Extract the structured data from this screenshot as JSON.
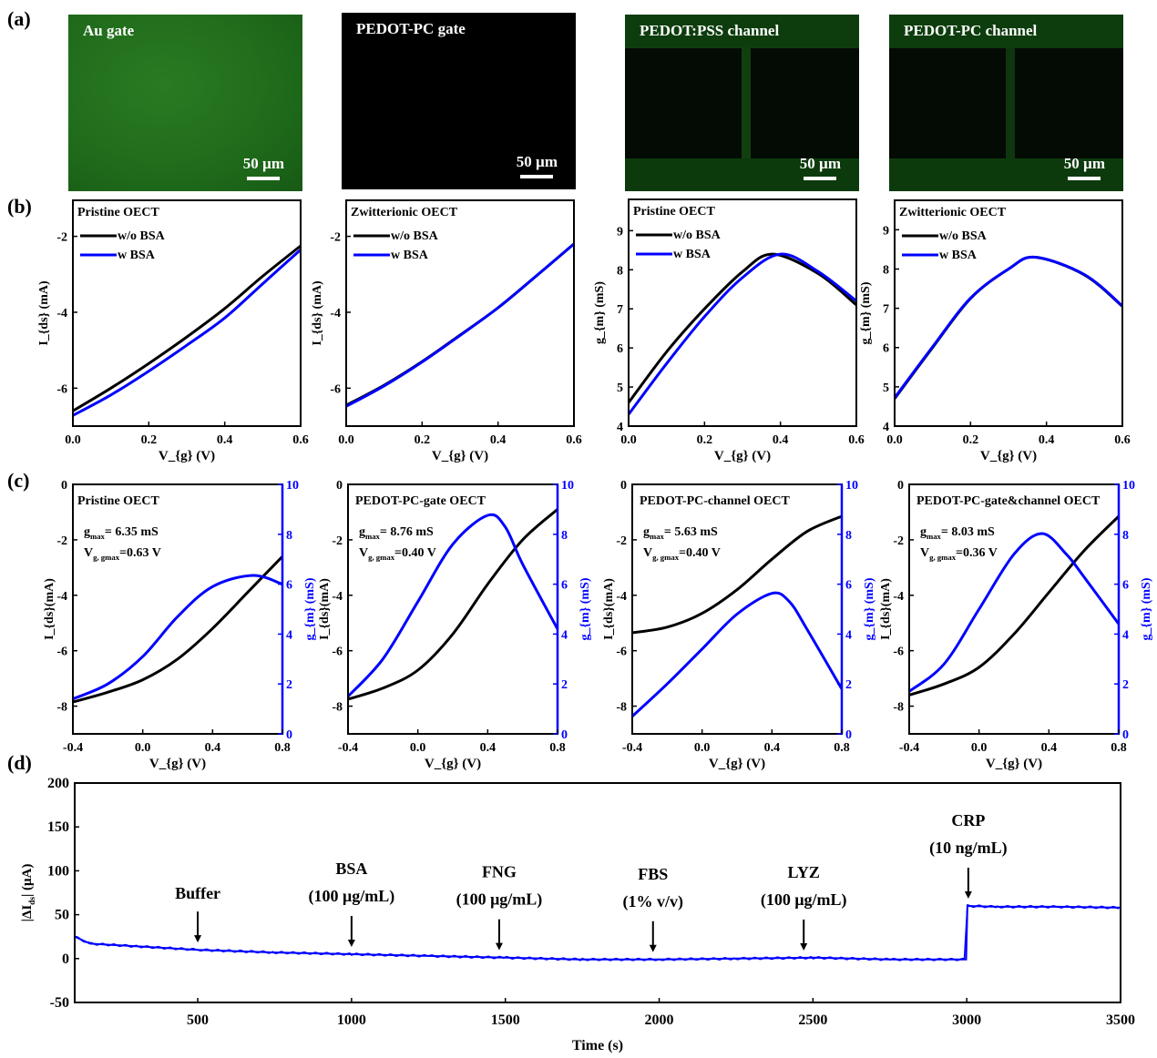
{
  "panel_labels": [
    "(a)",
    "(b)",
    "(c)",
    "(d)"
  ],
  "micrographs": [
    {
      "label": "Au gate",
      "scale": "50 µm",
      "color": "#1f6e1c"
    },
    {
      "label": "PEDOT-PC gate",
      "scale": "50 µm",
      "color": "#000000"
    },
    {
      "label": "PEDOT:PSS channel",
      "scale": "50 µm",
      "color": "#0d3d0d"
    },
    {
      "label": "PEDOT-PC channel",
      "scale": "50 µm",
      "color": "#0a300a"
    }
  ],
  "colors": {
    "black": "#000000",
    "blue": "#0000ff"
  },
  "chart_data": [
    {
      "type": "line",
      "title": "Pristine OECT",
      "xlabel": "V_{g} (V)",
      "ylabel": "I_{ds} (mA)",
      "xlim": [
        0,
        0.6
      ],
      "ylim": [
        -7.0,
        -1.05
      ],
      "xticks": [
        0,
        0.2,
        0.4,
        0.6
      ],
      "xticklabels": [
        "0.0",
        "0.2",
        "0.4",
        "0.6"
      ],
      "yticks": [
        -2,
        -4,
        -6
      ],
      "yticklabels": [
        "-2",
        "-4",
        "-6"
      ],
      "legend": "top-left",
      "series": [
        {
          "name": "w/o BSA",
          "color": "#000000",
          "x": [
            0,
            0.1,
            0.2,
            0.3,
            0.4,
            0.5,
            0.6
          ],
          "y": [
            -6.6,
            -6.0,
            -5.35,
            -4.65,
            -3.9,
            -3.05,
            -2.25
          ]
        },
        {
          "name": "w   BSA",
          "color": "#0000ff",
          "x": [
            0,
            0.1,
            0.2,
            0.3,
            0.4,
            0.5,
            0.6
          ],
          "y": [
            -6.72,
            -6.18,
            -5.55,
            -4.87,
            -4.15,
            -3.25,
            -2.35
          ]
        }
      ]
    },
    {
      "type": "line",
      "title": "Zwitterionic OECT",
      "xlabel": "V_{g} (V)",
      "ylabel": "I_{ds} (mA)",
      "xlim": [
        0,
        0.6
      ],
      "ylim": [
        -7.0,
        -1.05
      ],
      "xticks": [
        0,
        0.2,
        0.4,
        0.6
      ],
      "xticklabels": [
        "0.0",
        "0.2",
        "0.4",
        "0.6"
      ],
      "yticks": [
        -2,
        -4,
        -6
      ],
      "yticklabels": [
        "-2",
        "-4",
        "-6"
      ],
      "legend": "top-left",
      "series": [
        {
          "name": "w/o BSA",
          "color": "#000000",
          "x": [
            0,
            0.1,
            0.2,
            0.3,
            0.4,
            0.5,
            0.6
          ],
          "y": [
            -6.45,
            -5.92,
            -5.3,
            -4.6,
            -3.88,
            -3.05,
            -2.2
          ]
        },
        {
          "name": "w   BSA",
          "color": "#0000ff",
          "x": [
            0,
            0.1,
            0.2,
            0.3,
            0.4,
            0.5,
            0.6
          ],
          "y": [
            -6.48,
            -5.94,
            -5.31,
            -4.61,
            -3.88,
            -3.05,
            -2.2
          ]
        }
      ]
    },
    {
      "type": "line",
      "title": "Pristine OECT",
      "xlabel": "V_{g} (V)",
      "ylabel": "g_{m} (mS)",
      "xlim": [
        0,
        0.6
      ],
      "ylim": [
        4,
        9.8
      ],
      "xticks": [
        0,
        0.2,
        0.4,
        0.6
      ],
      "xticklabels": [
        "0.0",
        "0.2",
        "0.4",
        "0.6"
      ],
      "yticks": [
        4,
        5,
        6,
        7,
        8,
        9
      ],
      "yticklabels": [
        "4",
        "5",
        "6",
        "7",
        "8",
        "9"
      ],
      "legend": "top-left",
      "series": [
        {
          "name": "w/o BSA",
          "color": "#000000",
          "x": [
            0,
            0.1,
            0.2,
            0.3,
            0.38,
            0.5,
            0.6
          ],
          "y": [
            4.6,
            5.9,
            7.0,
            7.95,
            8.4,
            7.9,
            7.1
          ]
        },
        {
          "name": "w BSA",
          "color": "#0000ff",
          "x": [
            0,
            0.1,
            0.2,
            0.3,
            0.4,
            0.5,
            0.6
          ],
          "y": [
            4.3,
            5.6,
            6.8,
            7.8,
            8.4,
            7.95,
            7.2
          ]
        }
      ]
    },
    {
      "type": "line",
      "title": "Zwitterionic OECT",
      "xlabel": "V_{g} (V)",
      "ylabel": "g_{m} (mS)",
      "xlim": [
        0,
        0.6
      ],
      "ylim": [
        4,
        9.75
      ],
      "xticks": [
        0,
        0.2,
        0.4,
        0.6
      ],
      "xticklabels": [
        "0.0",
        "0.2",
        "0.4",
        "0.6"
      ],
      "yticks": [
        4,
        5,
        6,
        7,
        8,
        9
      ],
      "yticklabels": [
        "4",
        "5",
        "6",
        "7",
        "8",
        "9"
      ],
      "legend": "top-left",
      "series": [
        {
          "name": "w/o BSA",
          "color": "#000000",
          "x": [
            0,
            0.1,
            0.2,
            0.3,
            0.37,
            0.5,
            0.6
          ],
          "y": [
            4.7,
            6.0,
            7.25,
            8.0,
            8.3,
            7.85,
            7.05
          ]
        },
        {
          "name": "w BSA",
          "color": "#0000ff",
          "x": [
            0,
            0.1,
            0.2,
            0.3,
            0.37,
            0.5,
            0.6
          ],
          "y": [
            4.72,
            6.02,
            7.26,
            8.0,
            8.3,
            7.86,
            7.06
          ]
        }
      ]
    },
    {
      "type": "line",
      "title": "Pristine OECT",
      "xlabel": "V_{g} (V)",
      "ylabel": "I_{ds}(mA)",
      "y2label": "g_{m} (mS)",
      "xlim": [
        -0.4,
        0.8
      ],
      "ylim": [
        -9,
        0
      ],
      "y2lim": [
        0,
        10
      ],
      "xticks": [
        -0.4,
        0,
        0.4,
        0.8
      ],
      "xticklabels": [
        "-0.4",
        "0.0",
        "0.4",
        "0.8"
      ],
      "yticks": [
        0,
        -2,
        -4,
        -6,
        -8
      ],
      "yticklabels": [
        "0",
        "-2",
        "-4",
        "-6",
        "-8"
      ],
      "y2ticks": [
        0,
        2,
        4,
        6,
        8,
        10
      ],
      "y2ticklabels": [
        "0",
        "2",
        "4",
        "6",
        "8",
        "10"
      ],
      "annotations": [
        "g_{max}= 6.35 mS",
        "V_{g, gmax}=0.63 V"
      ],
      "series": [
        {
          "color": "#000000",
          "axis": "left",
          "x": [
            -0.4,
            -0.2,
            0,
            0.2,
            0.4,
            0.6,
            0.8
          ],
          "y": [
            -7.85,
            -7.5,
            -7.05,
            -6.3,
            -5.2,
            -3.9,
            -2.6
          ]
        },
        {
          "color": "#0000ff",
          "axis": "right",
          "x": [
            -0.4,
            -0.2,
            0,
            0.2,
            0.4,
            0.63,
            0.8
          ],
          "y": [
            1.4,
            2.0,
            3.1,
            4.7,
            5.9,
            6.35,
            6.0
          ]
        }
      ]
    },
    {
      "type": "line",
      "title": "PEDOT-PC-gate OECT",
      "xlabel": "V_{g} (V)",
      "ylabel": "I_{ds}(mA)",
      "y2label": "g_{m} (mS)",
      "xlim": [
        -0.4,
        0.8
      ],
      "ylim": [
        -9,
        0
      ],
      "y2lim": [
        0,
        10
      ],
      "xticks": [
        -0.4,
        0,
        0.4,
        0.8
      ],
      "xticklabels": [
        "-0.4",
        "0.0",
        "0.4",
        "0.8"
      ],
      "yticks": [
        0,
        -2,
        -4,
        -6,
        -8
      ],
      "yticklabels": [
        "0",
        "-2",
        "-4",
        "-6",
        "-8"
      ],
      "y2ticks": [
        0,
        2,
        4,
        6,
        8,
        10
      ],
      "y2ticklabels": [
        "0",
        "2",
        "4",
        "6",
        "8",
        "10"
      ],
      "annotations": [
        "g_{max}= 8.76 mS",
        "V_{g, gmax}=0.40 V"
      ],
      "series": [
        {
          "color": "#000000",
          "axis": "left",
          "x": [
            -0.4,
            -0.2,
            0,
            0.2,
            0.4,
            0.6,
            0.8
          ],
          "y": [
            -7.75,
            -7.35,
            -6.7,
            -5.4,
            -3.6,
            -2.0,
            -0.9
          ]
        },
        {
          "color": "#0000ff",
          "axis": "right",
          "x": [
            -0.4,
            -0.2,
            0,
            0.2,
            0.4,
            0.5,
            0.6,
            0.8
          ],
          "y": [
            1.5,
            3.0,
            5.3,
            7.6,
            8.76,
            8.3,
            6.8,
            4.2
          ]
        }
      ]
    },
    {
      "type": "line",
      "title": "PEDOT-PC-channel OECT",
      "xlabel": "V_{g} (V)",
      "ylabel": "I_{ds}(mA)",
      "y2label": "g_{m} (mS)",
      "xlim": [
        -0.4,
        0.8
      ],
      "ylim": [
        -9,
        0
      ],
      "y2lim": [
        0,
        10
      ],
      "xticks": [
        -0.4,
        0,
        0.4,
        0.8
      ],
      "xticklabels": [
        "-0.4",
        "0.0",
        "0.4",
        "0.8"
      ],
      "yticks": [
        0,
        -2,
        -4,
        -6,
        -8
      ],
      "yticklabels": [
        "0",
        "-2",
        "-4",
        "-6",
        "-8"
      ],
      "y2ticks": [
        0,
        2,
        4,
        6,
        8,
        10
      ],
      "y2ticklabels": [
        "0",
        "2",
        "4",
        "6",
        "8",
        "10"
      ],
      "annotations": [
        "g_{max}= 5.63 mS",
        "V_{g, gmax}=0.40 V"
      ],
      "series": [
        {
          "color": "#000000",
          "axis": "left",
          "x": [
            -0.4,
            -0.2,
            0,
            0.2,
            0.4,
            0.6,
            0.8
          ],
          "y": [
            -5.35,
            -5.15,
            -4.65,
            -3.8,
            -2.7,
            -1.7,
            -1.15
          ]
        },
        {
          "color": "#0000ff",
          "axis": "right",
          "x": [
            -0.4,
            -0.2,
            0,
            0.2,
            0.4,
            0.5,
            0.6,
            0.8
          ],
          "y": [
            0.7,
            2.0,
            3.4,
            4.8,
            5.63,
            5.3,
            4.2,
            1.8
          ]
        }
      ]
    },
    {
      "type": "line",
      "title": "PEDOT-PC-gate&channel OECT",
      "xlabel": "V_{g} (V)",
      "ylabel": "I_{ds}(mA)",
      "y2label": "g_{m} (mS)",
      "xlim": [
        -0.4,
        0.8
      ],
      "ylim": [
        -9,
        0
      ],
      "y2lim": [
        0,
        10
      ],
      "xticks": [
        -0.4,
        0,
        0.4,
        0.8
      ],
      "xticklabels": [
        "-0.4",
        "0.0",
        "0.4",
        "0.8"
      ],
      "yticks": [
        0,
        -2,
        -4,
        -6,
        -8
      ],
      "yticklabels": [
        "0",
        "-2",
        "-4",
        "-6",
        "-8"
      ],
      "y2ticks": [
        0,
        2,
        4,
        6,
        8,
        10
      ],
      "y2ticklabels": [
        "0",
        "2",
        "4",
        "6",
        "8",
        "10"
      ],
      "annotations": [
        "g_{max}= 8.03 mS",
        "V_{g, gmax}=0.36 V"
      ],
      "series": [
        {
          "color": "#000000",
          "axis": "left",
          "x": [
            -0.4,
            -0.2,
            0,
            0.2,
            0.4,
            0.6,
            0.8
          ],
          "y": [
            -7.6,
            -7.2,
            -6.6,
            -5.4,
            -3.9,
            -2.4,
            -1.15
          ]
        },
        {
          "color": "#0000ff",
          "axis": "right",
          "x": [
            -0.4,
            -0.2,
            0,
            0.2,
            0.36,
            0.5,
            0.6,
            0.8
          ],
          "y": [
            1.7,
            2.8,
            5.0,
            7.2,
            8.03,
            7.2,
            6.3,
            4.4
          ]
        }
      ]
    },
    {
      "type": "line",
      "xlabel": "Time (s)",
      "ylabel": "|ΔI_{ds}| (μA)",
      "xlim": [
        100,
        3500
      ],
      "ylim": [
        -50,
        200
      ],
      "xticks": [
        500,
        1000,
        1500,
        2000,
        2500,
        3000,
        3500
      ],
      "xticklabels": [
        "500",
        "1000",
        "1500",
        "2000",
        "2500",
        "3000",
        "3500"
      ],
      "yticks": [
        -50,
        0,
        50,
        100,
        150,
        200
      ],
      "yticklabels": [
        "-50",
        "0",
        "50",
        "100",
        "150",
        "200"
      ],
      "events": [
        {
          "x": 500,
          "lines": [
            "Buffer"
          ]
        },
        {
          "x": 1000,
          "lines": [
            "BSA",
            "(100 μg/mL)"
          ]
        },
        {
          "x": 1480,
          "lines": [
            "FNG",
            "(100 μg/mL)"
          ]
        },
        {
          "x": 1980,
          "lines": [
            "FBS",
            "(1% v/v)"
          ]
        },
        {
          "x": 2470,
          "lines": [
            "LYZ",
            "(100 μg/mL)"
          ]
        },
        {
          "x": 3005,
          "lines": [
            "CRP",
            "(10 ng/mL)"
          ]
        }
      ],
      "series": [
        {
          "color": "#0000ff",
          "x": [
            100,
            150,
            300,
            500,
            750,
            1000,
            1250,
            1500,
            1750,
            2000,
            2250,
            2500,
            2750,
            2998,
            3002,
            3100,
            3300,
            3500
          ],
          "y": [
            25,
            17,
            14,
            10,
            7,
            5,
            3,
            1,
            -1,
            -1,
            0,
            1,
            -1,
            -1,
            60,
            59,
            59,
            58
          ]
        }
      ]
    }
  ]
}
